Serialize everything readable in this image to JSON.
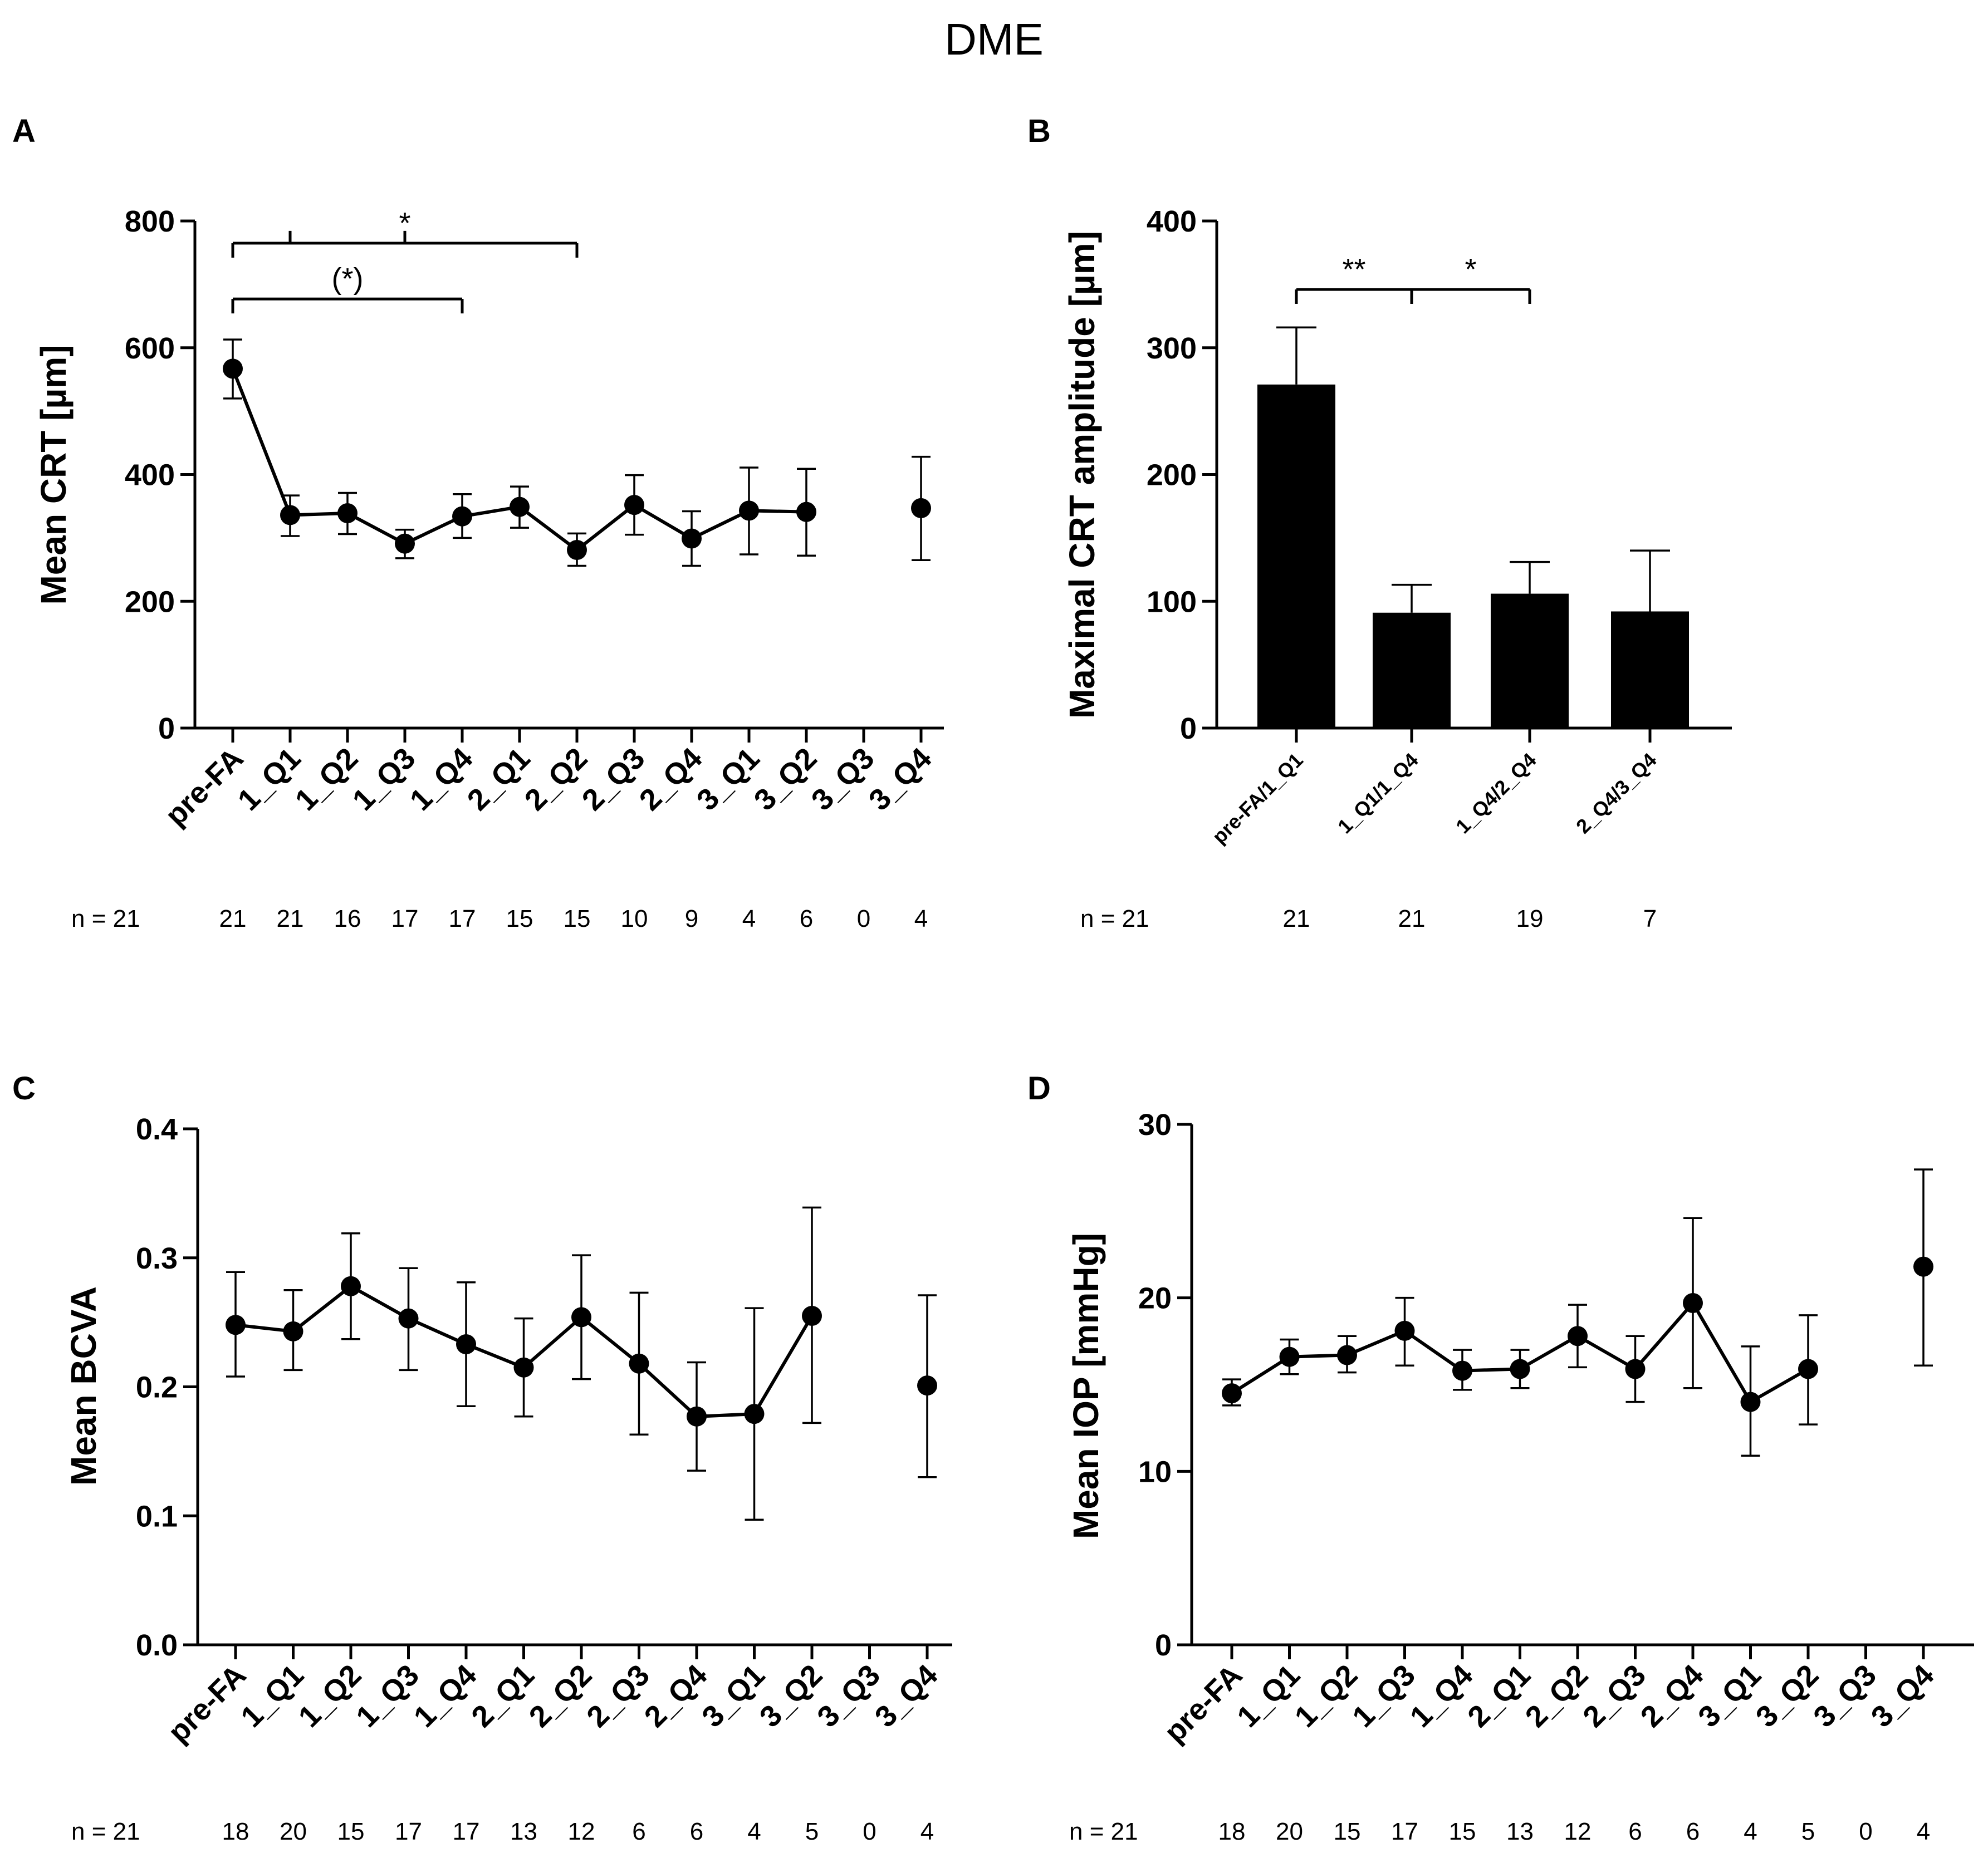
{
  "figure_title": "DME",
  "n_prefix": "n = 21",
  "chart_data": [
    {
      "panel": "A",
      "type": "line",
      "ylabel": "Mean CRT [µm]",
      "xlabel": "",
      "ylim": [
        0,
        800
      ],
      "yticks": [
        "0",
        "200",
        "400",
        "600",
        "800"
      ],
      "ytick_values": [
        0,
        200,
        400,
        600,
        800
      ],
      "categories": [
        "pre-FA",
        "1_Q1",
        "1_Q2",
        "1_Q3",
        "1_Q4",
        "2_Q1",
        "2_Q2",
        "2_Q3",
        "2_Q4",
        "3_Q1",
        "3_Q2",
        "3_Q3",
        "3_Q4"
      ],
      "series": [
        {
          "name": "Mean CRT",
          "values": [
            567,
            336,
            339,
            291,
            334,
            349,
            281,
            352,
            299,
            343,
            341,
            null,
            347
          ],
          "err_low": [
            520,
            303,
            306,
            268,
            300,
            316,
            256,
            305,
            256,
            274,
            272,
            null,
            265
          ],
          "err_high": [
            613,
            367,
            371,
            313,
            369,
            381,
            307,
            399,
            342,
            411,
            409,
            null,
            428
          ]
        }
      ],
      "n_values": [
        "21",
        "21",
        "16",
        "17",
        "17",
        "15",
        "15",
        "10",
        "9",
        "4",
        "6",
        "0",
        "4"
      ],
      "significance": [
        {
          "label": "*",
          "from": "pre-FA",
          "to": "2_Q2",
          "ticks": [
            "1_Q1",
            "1_Q3"
          ],
          "level": 765
        },
        {
          "label": "(*)",
          "from": "pre-FA",
          "to": "1_Q4",
          "ticks": [],
          "level": 677
        }
      ]
    },
    {
      "panel": "B",
      "type": "bar",
      "ylabel": "Maximal CRT amplitude [µm]",
      "xlabel": "",
      "ylim": [
        0,
        400
      ],
      "yticks": [
        "0",
        "100",
        "200",
        "300",
        "400"
      ],
      "ytick_values": [
        0,
        100,
        200,
        300,
        400
      ],
      "categories": [
        "pre-FA/1_Q1",
        "1_Q1/1_Q4",
        "1_Q4/2_Q4",
        "2_Q4/3_Q4"
      ],
      "series": [
        {
          "name": "Maximal CRT amplitude",
          "values": [
            271,
            91,
            106,
            92
          ],
          "err_high": [
            316,
            113,
            131,
            140
          ]
        }
      ],
      "n_values": [
        "21",
        "21",
        "19",
        "7"
      ],
      "significance": [
        {
          "label": "**",
          "from": "pre-FA/1_Q1",
          "to": "1_Q1/1_Q4",
          "level": 346
        },
        {
          "label": "*",
          "from": "1_Q1/1_Q4",
          "to": "1_Q4/2_Q4",
          "level": 346
        }
      ]
    },
    {
      "panel": "C",
      "type": "line",
      "ylabel": "Mean BCVA",
      "xlabel": "",
      "ylim": [
        0,
        0.4
      ],
      "yticks": [
        "0.0",
        "0.1",
        "0.2",
        "0.3",
        "0.4"
      ],
      "ytick_values": [
        0,
        0.1,
        0.2,
        0.3,
        0.4
      ],
      "categories": [
        "pre-FA",
        "1_Q1",
        "1_Q2",
        "1_Q3",
        "1_Q4",
        "2_Q1",
        "2_Q2",
        "2_Q3",
        "2_Q4",
        "3_Q1",
        "3_Q2",
        "3_Q3",
        "3_Q4"
      ],
      "series": [
        {
          "name": "Mean BCVA",
          "values": [
            0.248,
            0.243,
            0.278,
            0.253,
            0.233,
            0.215,
            0.254,
            0.218,
            0.177,
            0.179,
            0.255,
            null,
            0.201
          ],
          "err_low": [
            0.208,
            0.213,
            0.237,
            0.213,
            0.185,
            0.177,
            0.206,
            0.163,
            0.135,
            0.097,
            0.172,
            null,
            0.13
          ],
          "err_high": [
            0.289,
            0.275,
            0.319,
            0.292,
            0.281,
            0.253,
            0.302,
            0.273,
            0.219,
            0.261,
            0.339,
            null,
            0.271
          ]
        }
      ],
      "n_values": [
        "18",
        "20",
        "15",
        "17",
        "17",
        "13",
        "12",
        "6",
        "6",
        "4",
        "5",
        "0",
        "4"
      ]
    },
    {
      "panel": "D",
      "type": "line",
      "ylabel": "Mean IOP [mmHg]",
      "xlabel": "",
      "ylim": [
        0,
        30
      ],
      "yticks": [
        "0",
        "10",
        "20",
        "30"
      ],
      "ytick_values": [
        0,
        10,
        20,
        30
      ],
      "categories": [
        "pre-FA",
        "1_Q1",
        "1_Q2",
        "1_Q3",
        "1_Q4",
        "2_Q1",
        "2_Q2",
        "2_Q3",
        "2_Q4",
        "3_Q1",
        "3_Q2",
        "3_Q3",
        "3_Q4"
      ],
      "series": [
        {
          "name": "Mean IOP",
          "values": [
            14.5,
            16.6,
            16.7,
            18.1,
            15.8,
            15.9,
            17.8,
            15.9,
            19.7,
            14.0,
            15.9,
            null,
            21.8
          ],
          "err_low": [
            13.8,
            15.6,
            15.7,
            16.1,
            14.7,
            14.8,
            16.0,
            14.0,
            14.8,
            10.9,
            12.7,
            null,
            16.1
          ],
          "err_high": [
            15.3,
            17.6,
            17.8,
            20.0,
            17.0,
            17.0,
            19.6,
            17.8,
            24.6,
            17.2,
            19.0,
            null,
            27.4
          ]
        }
      ],
      "n_values": [
        "18",
        "20",
        "15",
        "17",
        "15",
        "13",
        "12",
        "6",
        "6",
        "4",
        "5",
        "0",
        "4"
      ]
    }
  ]
}
